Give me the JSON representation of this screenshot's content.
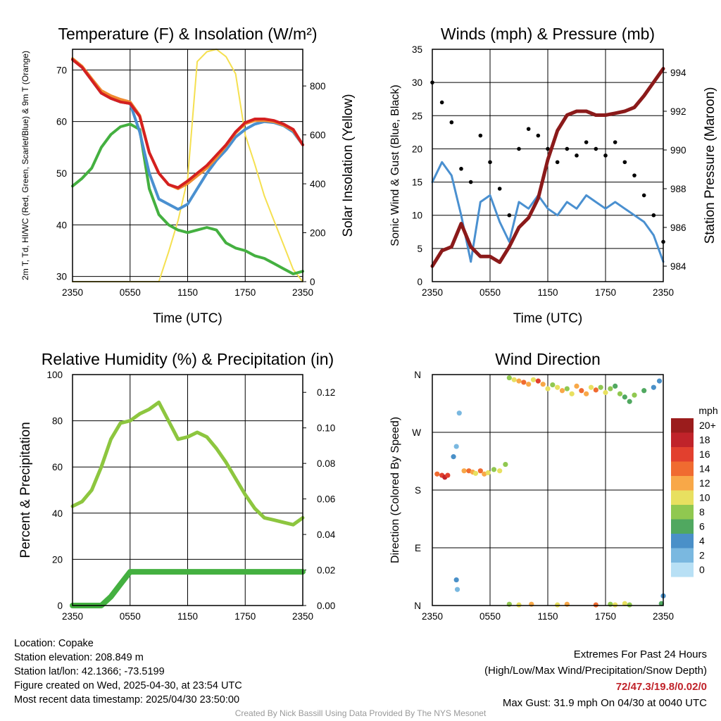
{
  "chart_data": [
    {
      "type": "line",
      "title": "Temperature (F) & Insolation (W/m²)",
      "xlabel": "Time (UTC)",
      "ylabel": "2m T, Td, HI/WC (Red, Green, Scarlet/Blue) & 9m T (Orange)",
      "y2label": "Solar Insolation (Yellow)",
      "x_ticks": [
        "2350",
        "0550",
        "1150",
        "1750",
        "2350"
      ],
      "ylim": [
        29,
        74
      ],
      "y_ticks": [
        30,
        40,
        50,
        60,
        70
      ],
      "y2lim": [
        0,
        950
      ],
      "y2_ticks": [
        0,
        200,
        400,
        600,
        800
      ],
      "x": [
        0,
        1,
        2,
        3,
        4,
        5,
        6,
        7,
        8,
        9,
        10,
        11,
        12,
        13,
        14,
        15,
        16,
        17,
        18,
        19,
        20,
        21,
        22,
        23,
        24
      ],
      "series": [
        {
          "name": "2m T",
          "color": "#d42020",
          "values": [
            72,
            70.5,
            68,
            65.5,
            64.5,
            63.8,
            63.5,
            61,
            54,
            50,
            47.8,
            47.2,
            48.5,
            50,
            51.5,
            53.5,
            55.5,
            58,
            59.8,
            60.5,
            60.5,
            60.2,
            59.5,
            58.5,
            55.5
          ]
        },
        {
          "name": "9m T",
          "color": "#f08a30",
          "values": [
            72.2,
            70.7,
            68.3,
            66,
            65,
            64.3,
            63.8,
            61.2,
            54,
            50,
            47.8,
            47,
            48,
            49.5,
            51,
            53,
            55.3,
            57.8,
            59.6,
            60.2,
            60.2,
            60,
            59.3,
            58.3,
            55.5
          ]
        },
        {
          "name": "HI/WC",
          "color": "#4a90d0",
          "values": [
            72,
            70.5,
            68,
            65.5,
            64.5,
            63.8,
            63.5,
            58,
            50,
            45,
            44,
            43,
            44,
            47,
            50,
            52.5,
            54.5,
            57,
            58.5,
            59.5,
            60,
            59.8,
            59.2,
            58,
            55.5
          ]
        },
        {
          "name": "Td",
          "color": "#44b040",
          "values": [
            47.5,
            49,
            51,
            55,
            57.5,
            59,
            59.5,
            58.5,
            47,
            42,
            40,
            39,
            38.5,
            39,
            39.5,
            39,
            36.5,
            35.5,
            35,
            34,
            33.5,
            32.5,
            31.5,
            30.5,
            31
          ]
        },
        {
          "name": "Insolation",
          "color": "#f5e050",
          "values": [
            0,
            0,
            0,
            0,
            0,
            0,
            0,
            0,
            0,
            0,
            120,
            250,
            420,
            900,
            940,
            950,
            920,
            850,
            600,
            480,
            350,
            250,
            150,
            50,
            0
          ]
        }
      ]
    },
    {
      "type": "line",
      "title": "Winds (mph) & Pressure (mb)",
      "xlabel": "Time (UTC)",
      "ylabel": "Sonic Wind & Gust (Blue, Black)",
      "y2label": "Station Pressure (Maroon)",
      "x_ticks": [
        "2350",
        "0550",
        "1150",
        "1750",
        "2350"
      ],
      "ylim": [
        0,
        35
      ],
      "y_ticks": [
        0,
        5,
        10,
        15,
        20,
        25,
        30,
        35
      ],
      "y2lim": [
        983.2,
        995.2
      ],
      "y2_ticks": [
        984,
        986,
        988,
        990,
        992,
        994
      ],
      "x": [
        0,
        1,
        2,
        3,
        4,
        5,
        6,
        7,
        8,
        9,
        10,
        11,
        12,
        13,
        14,
        15,
        16,
        17,
        18,
        19,
        20,
        21,
        22,
        23,
        24
      ],
      "series": [
        {
          "name": "Wind",
          "color": "#4a90d0",
          "values": [
            15,
            18,
            16,
            10,
            3,
            12,
            13,
            9,
            6,
            12,
            11,
            13,
            11,
            10,
            12,
            11,
            13,
            12,
            11,
            12,
            11,
            10,
            9,
            7,
            3
          ]
        },
        {
          "name": "Gust",
          "color": "#000000",
          "values": [
            30,
            27,
            24,
            17,
            15,
            22,
            18,
            14,
            10,
            20,
            23,
            22,
            20,
            18,
            20,
            19,
            21,
            20,
            19,
            21,
            18,
            16,
            13,
            10,
            6
          ]
        },
        {
          "name": "Pressure",
          "color": "#8b1a1a",
          "values": [
            984,
            984.8,
            985,
            986.2,
            985,
            984.5,
            984.5,
            984.2,
            985,
            986,
            986.5,
            987.5,
            989.5,
            991,
            991.8,
            992,
            992,
            991.8,
            991.8,
            991.9,
            992,
            992.2,
            992.8,
            993.5,
            994.2
          ]
        }
      ]
    },
    {
      "type": "line",
      "title": "Relative Humidity (%) & Precipitation (in)",
      "ylabel": "Percent & Precipitation",
      "x_ticks": [
        "2350",
        "0550",
        "1150",
        "1750",
        "2350"
      ],
      "ylim": [
        0,
        100
      ],
      "y_ticks": [
        0,
        20,
        40,
        60,
        80,
        100
      ],
      "y2lim": [
        0,
        0.13
      ],
      "y2_ticks": [
        "0.00",
        "0.02",
        "0.04",
        "0.06",
        "0.08",
        "0.10",
        "0.12"
      ],
      "x": [
        0,
        1,
        2,
        3,
        4,
        5,
        6,
        7,
        8,
        9,
        10,
        11,
        12,
        13,
        14,
        15,
        16,
        17,
        18,
        19,
        20,
        21,
        22,
        23,
        24
      ],
      "series": [
        {
          "name": "RH",
          "color": "#8dc63f",
          "values": [
            43,
            45,
            50,
            60,
            72,
            79,
            80,
            83,
            85,
            88,
            80,
            72,
            73,
            75,
            73,
            68,
            62,
            55,
            48,
            42,
            38,
            37,
            36,
            35,
            38
          ]
        },
        {
          "name": "Precip",
          "color": "#44b040",
          "values": [
            0,
            0,
            0,
            0,
            0.005,
            0.012,
            0.019,
            0.019,
            0.019,
            0.019,
            0.019,
            0.019,
            0.019,
            0.019,
            0.019,
            0.019,
            0.019,
            0.019,
            0.019,
            0.019,
            0.019,
            0.019,
            0.019,
            0.019,
            0.019
          ]
        }
      ]
    },
    {
      "type": "scatter",
      "title": "Wind Direction",
      "ylabel": "Direction (Colored By Speed)",
      "x_ticks": [
        "2350",
        "0550",
        "1150",
        "1750",
        "2350"
      ],
      "y_ticks": [
        "N",
        "E",
        "S",
        "W",
        "N"
      ],
      "ylim": [
        0,
        360
      ],
      "legend_title": "mph",
      "legend": [
        "20+",
        "18",
        "16",
        "14",
        "12",
        "10",
        "8",
        "6",
        "4",
        "2",
        "0"
      ],
      "legend_colors": [
        "#9b1c1c",
        "#c0232a",
        "#e2402e",
        "#f06b30",
        "#f8a848",
        "#e8e060",
        "#90c850",
        "#50a860",
        "#4a90c8",
        "#7ab8e0",
        "#b8e0f5"
      ],
      "points": [
        [
          0.5,
          205,
          14
        ],
        [
          1,
          203,
          16
        ],
        [
          1.3,
          200,
          18
        ],
        [
          1.6,
          203,
          15
        ],
        [
          2.2,
          232,
          4
        ],
        [
          2.5,
          248,
          2
        ],
        [
          2.8,
          300,
          2
        ],
        [
          3.3,
          210,
          12
        ],
        [
          3.8,
          210,
          14
        ],
        [
          4.2,
          208,
          12
        ],
        [
          4.5,
          206,
          10
        ],
        [
          5,
          210,
          14
        ],
        [
          5.4,
          205,
          12
        ],
        [
          5.8,
          207,
          10
        ],
        [
          6.4,
          212,
          8
        ],
        [
          7,
          210,
          10
        ],
        [
          7.6,
          220,
          8
        ],
        [
          8,
          355,
          8
        ],
        [
          8.5,
          352,
          10
        ],
        [
          9,
          350,
          12
        ],
        [
          9.5,
          348,
          14
        ],
        [
          10,
          345,
          12
        ],
        [
          10.5,
          352,
          10
        ],
        [
          11,
          350,
          16
        ],
        [
          11.5,
          345,
          12
        ],
        [
          12,
          338,
          10
        ],
        [
          12.5,
          344,
          8
        ],
        [
          13,
          340,
          10
        ],
        [
          13.5,
          335,
          12
        ],
        [
          14,
          338,
          8
        ],
        [
          14.5,
          330,
          10
        ],
        [
          15,
          342,
          12
        ],
        [
          15.5,
          335,
          14
        ],
        [
          16,
          330,
          12
        ],
        [
          16.5,
          340,
          10
        ],
        [
          17,
          336,
          14
        ],
        [
          17.5,
          340,
          8
        ],
        [
          18,
          332,
          10
        ],
        [
          18.5,
          338,
          8
        ],
        [
          19,
          342,
          6
        ],
        [
          19.5,
          330,
          8
        ],
        [
          20,
          325,
          6
        ],
        [
          20.5,
          318,
          6
        ],
        [
          21,
          328,
          8
        ],
        [
          22,
          335,
          6
        ],
        [
          23,
          340,
          4
        ],
        [
          23.6,
          350,
          4
        ],
        [
          2.5,
          40,
          4
        ],
        [
          2.6,
          25,
          2
        ],
        [
          8,
          2,
          8
        ],
        [
          9,
          1,
          10
        ],
        [
          10.3,
          2,
          12
        ],
        [
          13,
          1,
          10
        ],
        [
          14,
          2,
          12
        ],
        [
          17,
          1,
          14
        ],
        [
          18.5,
          2,
          8
        ],
        [
          19,
          1,
          10
        ],
        [
          20,
          3,
          10
        ],
        [
          20.5,
          1,
          8
        ],
        [
          23.8,
          3,
          6
        ],
        [
          24,
          15,
          4
        ]
      ]
    }
  ],
  "info": {
    "location": "Location: Copake",
    "elevation": "Station elevation: 208.849 m",
    "latlon": "Station lat/lon: 42.1366; -73.5199",
    "created": "Figure created on Wed, 2025-04-30, at 23:54 UTC",
    "recent": "Most recent data timestamp: 2025/04/30 23:50:00"
  },
  "extremes": {
    "title": "Extremes For Past 24 Hours",
    "subtitle": "(High/Low/Max Wind/Precipitation/Snow Depth)",
    "values": "72/47.3/19.8/0.02/0",
    "gust": "Max Gust: 31.9 mph On 04/30 at 0040 UTC"
  },
  "credit": "Created By Nick Bassill Using Data Provided By The NYS Mesonet"
}
